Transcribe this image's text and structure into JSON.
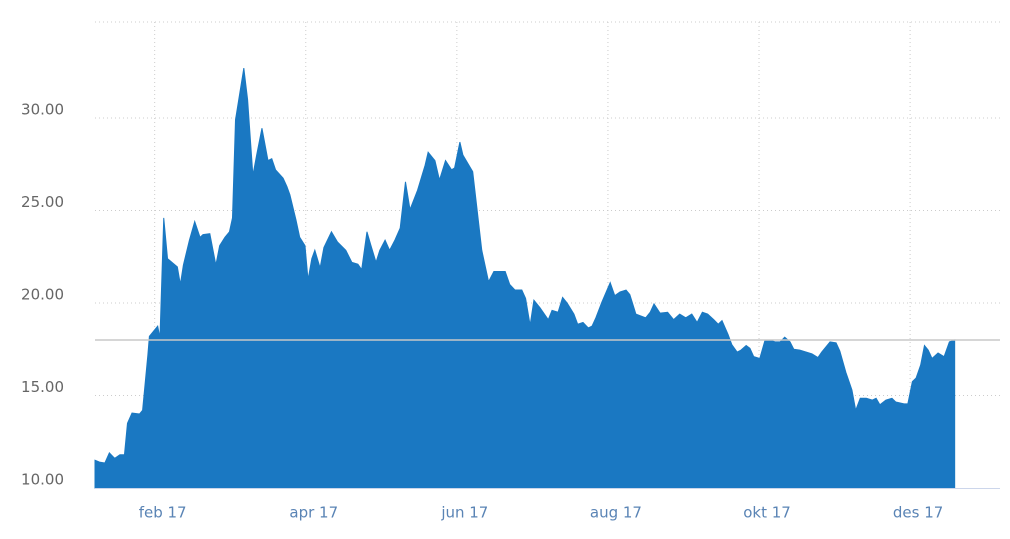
{
  "chart_data": {
    "type": "area",
    "color": "#1a78c2",
    "grid": true,
    "reference_line": 18,
    "xlim": [
      0.21,
      12.19
    ],
    "ylim": [
      10,
      35
    ],
    "xticks": [
      {
        "value": 1,
        "label": "feb 17"
      },
      {
        "value": 3,
        "label": "apr 17"
      },
      {
        "value": 5,
        "label": "jun 17"
      },
      {
        "value": 7,
        "label": "aug 17"
      },
      {
        "value": 9,
        "label": "okt 17"
      },
      {
        "value": 11,
        "label": "des 17"
      }
    ],
    "yticks": [
      {
        "value": 10,
        "label": "10.00"
      },
      {
        "value": 15,
        "label": "15.00"
      },
      {
        "value": 20,
        "label": "20.00"
      },
      {
        "value": 25,
        "label": "25.00"
      },
      {
        "value": 30,
        "label": "30.00"
      }
    ],
    "x": [
      0.21,
      0.27,
      0.34,
      0.4,
      0.47,
      0.54,
      0.6,
      0.64,
      0.7,
      0.8,
      0.84,
      0.91,
      0.93,
      1.04,
      1.07,
      1.12,
      1.17,
      1.3,
      1.34,
      1.38,
      1.46,
      1.53,
      1.6,
      1.64,
      1.73,
      1.81,
      1.86,
      1.93,
      1.99,
      2.03,
      2.07,
      2.18,
      2.23,
      2.3,
      2.35,
      2.42,
      2.5,
      2.55,
      2.6,
      2.7,
      2.75,
      2.79,
      2.87,
      2.92,
      2.99,
      3.03,
      3.08,
      3.12,
      3.19,
      3.24,
      3.34,
      3.42,
      3.53,
      3.61,
      3.69,
      3.74,
      3.81,
      3.86,
      3.93,
      3.98,
      4.05,
      4.11,
      4.18,
      4.25,
      4.32,
      4.38,
      4.48,
      4.58,
      4.62,
      4.71,
      4.77,
      4.85,
      4.93,
      4.97,
      5.04,
      5.08,
      5.21,
      5.33,
      5.42,
      5.49,
      5.64,
      5.7,
      5.77,
      5.86,
      5.91,
      5.97,
      6.02,
      6.1,
      6.21,
      6.26,
      6.34,
      6.4,
      6.46,
      6.55,
      6.6,
      6.67,
      6.74,
      6.79,
      6.84,
      6.92,
      7.03,
      7.09,
      7.16,
      7.24,
      7.29,
      7.37,
      7.5,
      7.56,
      7.61,
      7.69,
      7.79,
      7.87,
      7.95,
      8.03,
      8.11,
      8.18,
      8.25,
      8.32,
      8.4,
      8.46,
      8.51,
      8.59,
      8.64,
      8.71,
      8.76,
      8.83,
      8.88,
      8.93,
      9.01,
      9.08,
      9.15,
      9.21,
      9.28,
      9.34,
      9.41,
      9.46,
      9.54,
      9.62,
      9.7,
      9.78,
      9.83,
      9.94,
      10.02,
      10.07,
      10.15,
      10.23,
      10.28,
      10.34,
      10.42,
      10.5,
      10.55,
      10.6,
      10.68,
      10.76,
      10.81,
      10.92,
      10.97,
      11.03,
      11.08,
      11.14,
      11.19,
      11.24,
      11.29,
      11.37,
      11.45,
      11.52,
      11.59
    ],
    "values": [
      11.5,
      11.4,
      11.35,
      11.9,
      11.6,
      11.8,
      11.8,
      13.5,
      14.05,
      14.0,
      14.2,
      17.2,
      18.2,
      18.75,
      18.1,
      24.6,
      22.4,
      21.95,
      21.0,
      22.05,
      23.4,
      24.4,
      23.55,
      23.7,
      23.75,
      22.05,
      23.1,
      23.55,
      23.85,
      24.6,
      29.9,
      32.7,
      31.0,
      26.9,
      28.0,
      29.45,
      27.7,
      27.8,
      27.2,
      26.75,
      26.3,
      25.85,
      24.5,
      23.55,
      23.1,
      21.25,
      22.4,
      22.85,
      21.9,
      23.0,
      23.85,
      23.3,
      22.85,
      22.2,
      22.1,
      21.8,
      23.85,
      23.15,
      22.2,
      22.85,
      23.4,
      22.85,
      23.4,
      24.05,
      26.55,
      25.05,
      26.1,
      27.45,
      28.15,
      27.7,
      26.65,
      27.7,
      27.2,
      27.3,
      28.7,
      28.0,
      27.1,
      22.85,
      21.15,
      21.7,
      21.7,
      21.0,
      20.7,
      20.7,
      20.25,
      18.8,
      20.15,
      19.75,
      19.1,
      19.6,
      19.5,
      20.3,
      20.0,
      19.4,
      18.85,
      18.95,
      18.65,
      18.75,
      19.2,
      20.05,
      21.1,
      20.4,
      20.6,
      20.7,
      20.45,
      19.4,
      19.2,
      19.5,
      19.95,
      19.45,
      19.5,
      19.1,
      19.4,
      19.2,
      19.4,
      18.95,
      19.5,
      19.4,
      19.1,
      18.85,
      19.05,
      18.3,
      17.75,
      17.35,
      17.45,
      17.7,
      17.55,
      17.1,
      17.0,
      18.0,
      18.0,
      17.9,
      17.9,
      18.15,
      17.9,
      17.5,
      17.45,
      17.35,
      17.25,
      17.05,
      17.35,
      17.9,
      17.85,
      17.4,
      16.25,
      15.3,
      14.2,
      14.85,
      14.85,
      14.75,
      14.85,
      14.5,
      14.75,
      14.85,
      14.65,
      14.55,
      14.55,
      15.75,
      15.95,
      16.65,
      17.7,
      17.45,
      17.0,
      17.3,
      17.1,
      17.9,
      18.0
    ]
  }
}
